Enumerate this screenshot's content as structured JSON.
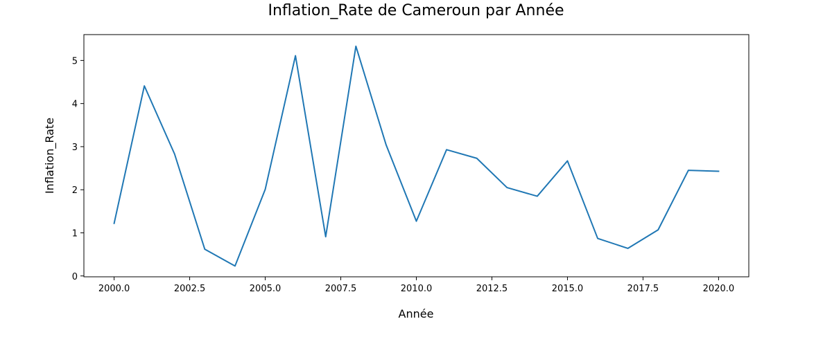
{
  "chart_data": {
    "type": "line",
    "title": "Inflation_Rate de Cameroun par Année",
    "xlabel": "Année",
    "ylabel": "Inflation_Rate",
    "xlim": [
      1999.0,
      2021.0
    ],
    "ylim": [
      -0.02,
      5.6
    ],
    "x_ticks": [
      2000.0,
      2002.5,
      2005.0,
      2007.5,
      2010.0,
      2012.5,
      2015.0,
      2017.5,
      2020.0
    ],
    "x_tick_labels": [
      "2000.0",
      "2002.5",
      "2005.0",
      "2007.5",
      "2010.0",
      "2012.5",
      "2015.0",
      "2017.5",
      "2020.0"
    ],
    "y_ticks": [
      0,
      1,
      2,
      3,
      4,
      5
    ],
    "y_tick_labels": [
      "0",
      "1",
      "2",
      "3",
      "4",
      "5"
    ],
    "grid": false,
    "line_color": "#1f77b4",
    "series": [
      {
        "x": [
          2000,
          2001,
          2002,
          2003,
          2004,
          2005,
          2006,
          2007,
          2008,
          2009,
          2010,
          2011,
          2012,
          2013,
          2014,
          2015,
          2016,
          2017,
          2018,
          2019,
          2020
        ],
        "values": [
          1.22,
          4.41,
          2.83,
          0.62,
          0.23,
          2.01,
          5.11,
          0.91,
          5.33,
          3.04,
          1.27,
          2.93,
          2.73,
          2.05,
          1.85,
          2.67,
          0.87,
          0.64,
          1.07,
          2.45,
          2.43
        ]
      }
    ]
  }
}
